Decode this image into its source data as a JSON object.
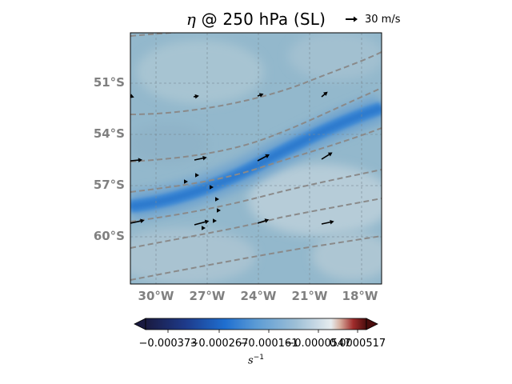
{
  "title": {
    "symbol": "η",
    "rest": " @ 250 hPa (SL)"
  },
  "quiver_key": {
    "label": "30 m/s"
  },
  "colorbar": {
    "label_base": "s",
    "label_exp": "−1",
    "ticks": [
      "−0.000373",
      "−0.000267",
      "−0.000161",
      "−0.0000547",
      "0.0000517"
    ],
    "colors": [
      "#1a1a40",
      "#1e3a8a",
      "#1f6fd0",
      "#5b9bd5",
      "#9dbfd6",
      "#dfe7ec",
      "#c99a8a",
      "#a02c2c",
      "#4a0d0d"
    ]
  },
  "chart_data": {
    "type": "heatmap",
    "title": "η @ 250 hPa (SL)",
    "variable": "η",
    "level": "250 hPa",
    "units": "s^-1",
    "xlabel": "",
    "ylabel": "",
    "lon_ticks": [
      "30°W",
      "27°W",
      "24°W",
      "21°W",
      "18°W"
    ],
    "lat_ticks": [
      "51°S",
      "54°S",
      "57°S",
      "60°S"
    ],
    "xlim": [
      -31.5,
      -16.9
    ],
    "ylim": [
      -63.2,
      -48.6
    ],
    "colorbar_ticks": [
      -0.000373,
      -0.000267,
      -0.000161,
      -5.47e-05,
      5.17e-05
    ],
    "grid": true,
    "vector_reference": "30 m/s"
  }
}
